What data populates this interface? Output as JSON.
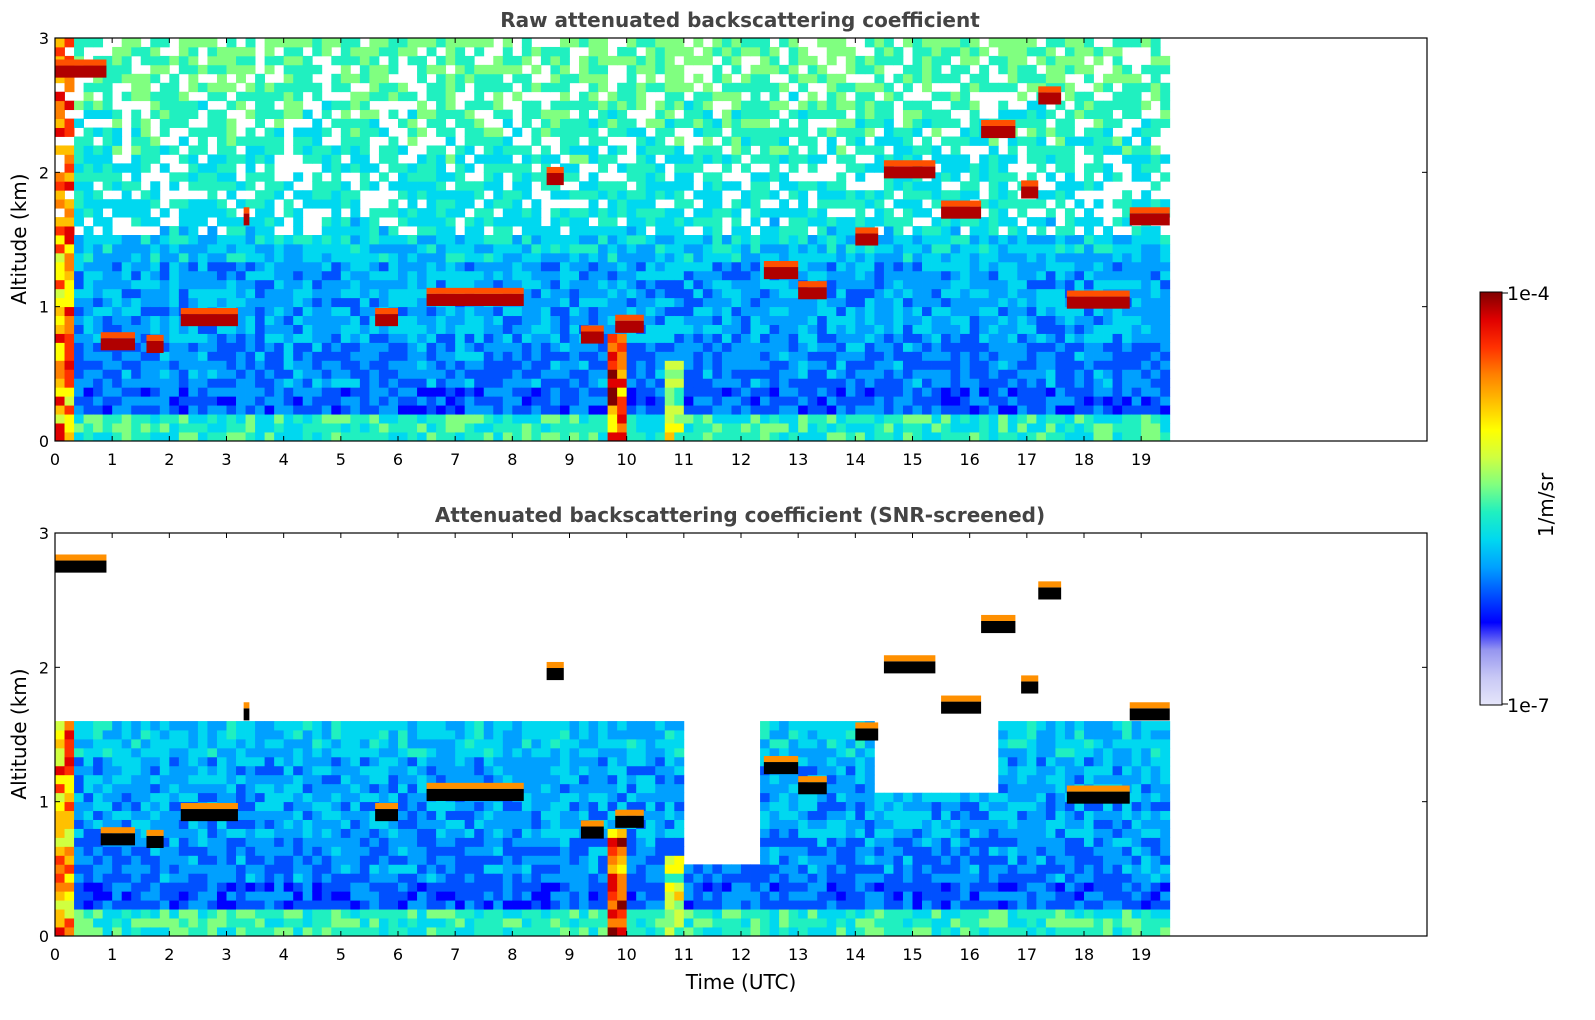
{
  "colors": {
    "background": "#ffffff",
    "frame": "#000000",
    "title_text": "#444444",
    "colormap": [
      "#e6e6fa",
      "#c8c8f5",
      "#9696f0",
      "#0000ff",
      "#0050ff",
      "#00a0ff",
      "#00d8f0",
      "#20f0c0",
      "#80ff80",
      "#d0ff40",
      "#ffff00",
      "#ffc000",
      "#ff8000",
      "#ff3000",
      "#e00000",
      "#800000"
    ],
    "screened_low_snr": "#ffffff",
    "screened_cloud_core": "#000000"
  },
  "colorbar": {
    "label": "1/m/sr",
    "top_label": "1e-4",
    "bottom_label": "1e-7",
    "scale": "log",
    "range": [
      1e-07,
      0.0001
    ]
  },
  "chart_data": [
    {
      "type": "heatmap",
      "title": "Raw attenuated backscattering coefficient",
      "xlabel": "",
      "ylabel": "Altitude (km)",
      "xlim": [
        0,
        24
      ],
      "ylim": [
        0,
        3
      ],
      "x_ticks": [
        "0",
        "1",
        "2",
        "3",
        "4",
        "5",
        "6",
        "7",
        "8",
        "9",
        "10",
        "11",
        "12",
        "13",
        "14",
        "15",
        "16",
        "17",
        "18",
        "19"
      ],
      "y_ticks": [
        "0",
        "1",
        "2",
        "3"
      ],
      "data_end_x": 19.5,
      "cloud_layers": [
        {
          "t0": 0.0,
          "t1": 0.9,
          "alt": 2.75
        },
        {
          "t0": 0.8,
          "t1": 1.4,
          "alt": 0.72
        },
        {
          "t0": 1.6,
          "t1": 1.9,
          "alt": 0.7
        },
        {
          "t0": 2.2,
          "t1": 3.2,
          "alt": 0.9
        },
        {
          "t0": 3.3,
          "t1": 3.4,
          "alt": 1.65
        },
        {
          "t0": 5.6,
          "t1": 6.0,
          "alt": 0.9
        },
        {
          "t0": 6.5,
          "t1": 8.2,
          "alt": 1.05
        },
        {
          "t0": 8.6,
          "t1": 8.9,
          "alt": 1.95
        },
        {
          "t0": 9.2,
          "t1": 9.6,
          "alt": 0.77
        },
        {
          "t0": 9.8,
          "t1": 10.3,
          "alt": 0.85
        },
        {
          "t0": 12.4,
          "t1": 13.0,
          "alt": 1.25
        },
        {
          "t0": 13.0,
          "t1": 13.5,
          "alt": 1.1
        },
        {
          "t0": 14.0,
          "t1": 14.4,
          "alt": 1.5
        },
        {
          "t0": 14.5,
          "t1": 15.4,
          "alt": 2.0
        },
        {
          "t0": 15.5,
          "t1": 16.2,
          "alt": 1.7
        },
        {
          "t0": 16.2,
          "t1": 16.8,
          "alt": 2.3
        },
        {
          "t0": 16.9,
          "t1": 17.2,
          "alt": 1.85
        },
        {
          "t0": 17.2,
          "t1": 17.6,
          "alt": 2.55
        },
        {
          "t0": 17.7,
          "t1": 18.8,
          "alt": 1.03
        },
        {
          "t0": 18.8,
          "t1": 19.5,
          "alt": 1.65
        }
      ]
    },
    {
      "type": "heatmap",
      "title": "Attenuated backscattering coefficient (SNR-screened)",
      "xlabel": "Time (UTC)",
      "ylabel": "Altitude (km)",
      "xlim": [
        0,
        24
      ],
      "ylim": [
        0,
        3
      ],
      "x_ticks": [
        "0",
        "1",
        "2",
        "3",
        "4",
        "5",
        "6",
        "7",
        "8",
        "9",
        "10",
        "11",
        "12",
        "13",
        "14",
        "15",
        "16",
        "17",
        "18",
        "19"
      ],
      "y_ticks": [
        "0",
        "1",
        "2",
        "3"
      ],
      "data_end_x": 19.5,
      "screening": "low-SNR pixels removed (white); strongest returns saturate to black"
    }
  ]
}
